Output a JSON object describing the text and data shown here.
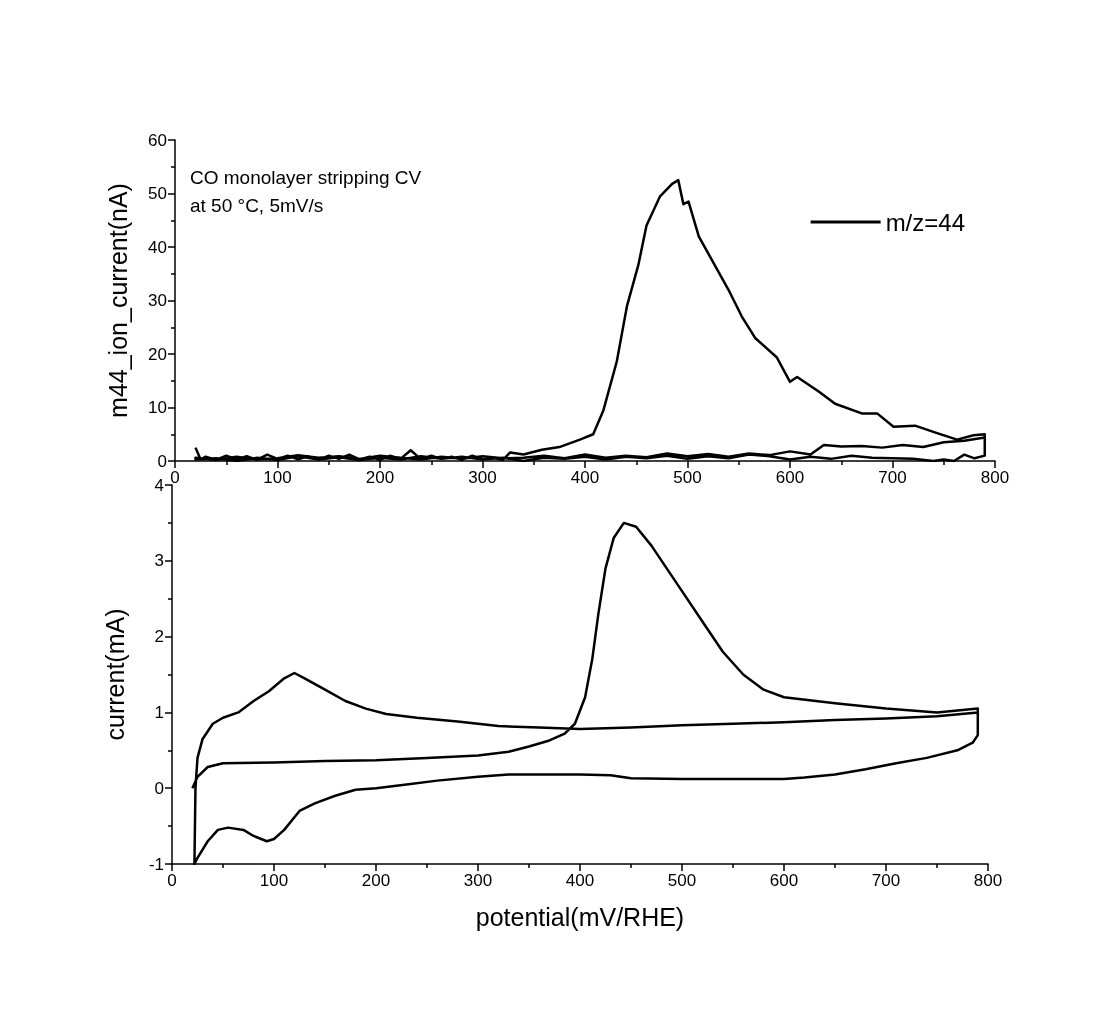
{
  "chart_data": [
    {
      "type": "line",
      "ylabel": "m44_ion_current(nA)",
      "xlim": [
        0,
        800
      ],
      "xticks": [
        0,
        100,
        200,
        300,
        400,
        500,
        600,
        700,
        800
      ],
      "ylim": [
        0,
        60
      ],
      "yticks": [
        0,
        10,
        20,
        30,
        40,
        50,
        60
      ],
      "legend": "top right",
      "grid": false,
      "annotations": [
        "CO monolayer stripping CV",
        "at 50 °C, 5mV/s"
      ],
      "series": [
        {
          "name": "m/z=44",
          "color": "#000000",
          "x": [
            20,
            25,
            30,
            40,
            50,
            60,
            70,
            80,
            90,
            100,
            110,
            120,
            130,
            140,
            150,
            160,
            170,
            180,
            190,
            200,
            210,
            220,
            230,
            240,
            250,
            260,
            270,
            280,
            290,
            300,
            310,
            320,
            327,
            340,
            358,
            375,
            395,
            408,
            418,
            431,
            441,
            452,
            460,
            473,
            485,
            491,
            496,
            501,
            511,
            524,
            540,
            553,
            566,
            587,
            600,
            607,
            628,
            644,
            670,
            685,
            701,
            722,
            742,
            763,
            779,
            790,
            790,
            780,
            770,
            760,
            750,
            740,
            720,
            700,
            680,
            660,
            640,
            620,
            600,
            580,
            560,
            540,
            520,
            500,
            480,
            460,
            440,
            420,
            400,
            380,
            360,
            340,
            320,
            300,
            280,
            260,
            240,
            220,
            200,
            180,
            160,
            140,
            120,
            100,
            80,
            60,
            40,
            20,
            20,
            40,
            60,
            80,
            100,
            120,
            140,
            160,
            180,
            200,
            220,
            240,
            260,
            280,
            300,
            320,
            340,
            360,
            380,
            400,
            420,
            440,
            460,
            480,
            500,
            520,
            540,
            560,
            580,
            600,
            620,
            633,
            650,
            670,
            690,
            710,
            730,
            750,
            770,
            790
          ],
          "values": [
            2.5,
            0.3,
            0.8,
            0.2,
            1,
            0.3,
            0.9,
            0.2,
            1.2,
            0.4,
            1,
            0.3,
            0.9,
            0.2,
            1,
            0.4,
            1.2,
            0.3,
            0.8,
            0.2,
            1,
            0.4,
            2,
            0.3,
            1,
            0.4,
            0.8,
            0.2,
            1,
            0.3,
            0.6,
            0.2,
            1.6,
            1.2,
            2.1,
            2.6,
            4,
            5,
            9.5,
            18.6,
            29,
            36.6,
            44,
            49.4,
            51.8,
            52.5,
            48,
            48.5,
            42,
            37.5,
            32,
            27,
            23,
            19.4,
            14.8,
            15.7,
            13,
            10.7,
            8.9,
            8.9,
            6.4,
            6.6,
            5.3,
            4,
            4.8,
            5,
            1,
            0.5,
            1.2,
            0,
            0.3,
            0,
            0.4,
            0.5,
            0.6,
            1,
            0.4,
            0.8,
            0.3,
            0.9,
            1.2,
            0.5,
            0.9,
            0.4,
            1,
            0.5,
            0.8,
            0.3,
            0.8,
            0.4,
            0.6,
            0,
            0.6,
            0.3,
            0.8,
            0.4,
            0.9,
            0.3,
            0.6,
            0.2,
            0.7,
            0.3,
            0.9,
            0.2,
            0.6,
            0,
            0.5,
            0.3,
            0.6,
            0.2,
            0.8,
            0.3,
            0.5,
            1.1,
            0.6,
            0.9,
            0.4,
            1,
            0.6,
            0.3,
            0.8,
            0.4,
            0.9,
            0.5,
            0.6,
            1,
            0.5,
            1.2,
            0.6,
            1,
            0.7,
            1.4,
            0.9,
            1.3,
            0.8,
            1.4,
            1.1,
            1.8,
            1.2,
            3,
            2.7,
            2.8,
            2.5,
            3,
            2.6,
            3.5,
            3.8,
            4.4
          ]
        }
      ]
    },
    {
      "type": "line",
      "xlabel": "potential(mV/RHE)",
      "ylabel": "current(mA)",
      "xlim": [
        0,
        800
      ],
      "xticks": [
        0,
        100,
        200,
        300,
        400,
        500,
        600,
        700,
        800
      ],
      "ylim": [
        -1,
        4
      ],
      "yticks": [
        -1,
        0,
        1,
        2,
        3,
        4
      ],
      "grid": false,
      "series": [
        {
          "color": "#000000",
          "x": [
            20,
            25,
            35,
            50,
            100,
            150,
            200,
            250,
            300,
            330,
            350,
            370,
            385,
            395,
            405,
            412,
            418,
            425,
            433,
            443,
            455,
            470,
            485,
            500,
            520,
            540,
            560,
            580,
            600,
            650,
            700,
            750,
            790,
            790,
            785,
            770,
            740,
            710,
            680,
            650,
            620,
            600,
            500,
            450,
            430,
            400,
            330,
            300,
            260,
            230,
            200,
            180,
            160,
            140,
            125,
            110,
            100,
            93,
            80,
            70,
            55,
            45,
            35,
            25,
            22,
            22,
            23,
            25,
            30,
            40,
            50,
            65,
            80,
            95,
            110,
            120,
            130,
            150,
            170,
            190,
            210,
            240,
            280,
            320,
            360,
            400,
            450,
            500,
            550,
            600,
            650,
            700,
            750,
            790
          ],
          "values": [
            0,
            0.15,
            0.28,
            0.33,
            0.34,
            0.36,
            0.37,
            0.4,
            0.43,
            0.48,
            0.55,
            0.63,
            0.72,
            0.85,
            1.2,
            1.7,
            2.3,
            2.9,
            3.3,
            3.5,
            3.45,
            3.2,
            2.9,
            2.6,
            2.2,
            1.8,
            1.5,
            1.3,
            1.2,
            1.12,
            1.05,
            1,
            1.05,
            0.7,
            0.6,
            0.5,
            0.4,
            0.33,
            0.25,
            0.18,
            0.14,
            0.12,
            0.12,
            0.13,
            0.17,
            0.18,
            0.18,
            0.15,
            0.1,
            0.05,
            0,
            -0.02,
            -0.1,
            -0.2,
            -0.3,
            -0.55,
            -0.67,
            -0.7,
            -0.63,
            -0.55,
            -0.52,
            -0.55,
            -0.7,
            -0.92,
            -1,
            -1,
            0,
            0.4,
            0.65,
            0.85,
            0.93,
            1,
            1.15,
            1.28,
            1.45,
            1.52,
            1.45,
            1.3,
            1.15,
            1.05,
            0.98,
            0.93,
            0.88,
            0.82,
            0.8,
            0.78,
            0.8,
            0.83,
            0.85,
            0.87,
            0.9,
            0.92,
            0.95,
            1
          ]
        }
      ]
    }
  ]
}
